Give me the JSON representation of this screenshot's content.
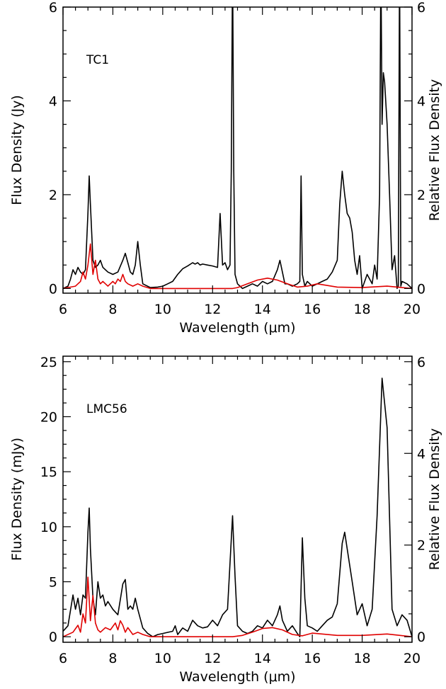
{
  "colors": {
    "observed": "#000000",
    "model": "#e00000"
  },
  "chart_data": [
    {
      "type": "line",
      "annotation": "TC1",
      "xlabel": "Wavelength (μm)",
      "ylabel": "Flux Density (Jy)",
      "y2label": "Relative Flux Density",
      "xlim": [
        6,
        20
      ],
      "ylim": [
        -0.1,
        6
      ],
      "y2lim": [
        -0.1,
        6
      ],
      "xticks": [
        6,
        8,
        10,
        12,
        14,
        16,
        18,
        20
      ],
      "yticks": [
        0,
        2,
        4,
        6
      ],
      "y2ticks": [
        0,
        2,
        4,
        6
      ],
      "series": [
        {
          "axis": "left",
          "color": "#000000",
          "x": [
            6.0,
            6.2,
            6.3,
            6.4,
            6.5,
            6.6,
            6.7,
            6.8,
            6.9,
            7.0,
            7.05,
            7.1,
            7.2,
            7.3,
            7.4,
            7.5,
            7.6,
            7.8,
            8.0,
            8.2,
            8.4,
            8.5,
            8.6,
            8.7,
            8.8,
            8.9,
            9.0,
            9.1,
            9.2,
            9.5,
            9.8,
            10.0,
            10.2,
            10.4,
            10.6,
            10.8,
            11.0,
            11.2,
            11.3,
            11.4,
            11.5,
            11.6,
            11.8,
            12.0,
            12.2,
            12.3,
            12.4,
            12.5,
            12.6,
            12.7,
            12.75,
            12.8,
            12.85,
            12.9,
            13.0,
            13.2,
            13.4,
            13.6,
            13.8,
            14.0,
            14.2,
            14.4,
            14.6,
            14.7,
            14.8,
            14.9,
            15.0,
            15.2,
            15.4,
            15.5,
            15.55,
            15.6,
            15.7,
            15.8,
            16.0,
            16.2,
            16.4,
            16.6,
            16.8,
            17.0,
            17.1,
            17.2,
            17.3,
            17.4,
            17.5,
            17.6,
            17.7,
            17.8,
            17.9,
            18.0,
            18.2,
            18.4,
            18.5,
            18.6,
            18.7,
            18.75,
            18.8,
            18.85,
            18.9,
            19.0,
            19.1,
            19.2,
            19.3,
            19.4,
            19.45,
            19.5,
            19.55,
            19.6,
            19.8,
            20.0
          ],
          "y": [
            0.0,
            0.05,
            0.2,
            0.4,
            0.3,
            0.45,
            0.35,
            0.3,
            0.4,
            1.6,
            2.4,
            1.8,
            0.6,
            0.45,
            0.5,
            0.6,
            0.45,
            0.35,
            0.3,
            0.35,
            0.6,
            0.75,
            0.55,
            0.35,
            0.3,
            0.5,
            1.0,
            0.5,
            0.1,
            0.02,
            0.03,
            0.05,
            0.1,
            0.15,
            0.3,
            0.42,
            0.48,
            0.55,
            0.52,
            0.55,
            0.5,
            0.52,
            0.5,
            0.48,
            0.45,
            1.6,
            0.5,
            0.55,
            0.4,
            0.5,
            2.5,
            7.0,
            2.5,
            0.3,
            0.1,
            0.0,
            0.05,
            0.1,
            0.05,
            0.15,
            0.1,
            0.15,
            0.4,
            0.6,
            0.35,
            0.1,
            0.1,
            0.05,
            0.1,
            0.15,
            2.4,
            0.3,
            0.05,
            0.15,
            0.05,
            0.1,
            0.15,
            0.2,
            0.35,
            0.6,
            1.8,
            2.5,
            2.0,
            1.6,
            1.5,
            1.2,
            0.6,
            0.3,
            0.7,
            0.0,
            0.3,
            0.1,
            0.5,
            0.2,
            2.0,
            7.0,
            3.5,
            4.6,
            4.4,
            3.5,
            2.0,
            0.4,
            0.7,
            0.0,
            0.05,
            7.0,
            0.05,
            0.15,
            0.1,
            0.0
          ]
        },
        {
          "axis": "right",
          "color": "#e00000",
          "x": [
            6.0,
            6.5,
            6.7,
            6.8,
            6.9,
            7.0,
            7.1,
            7.2,
            7.3,
            7.4,
            7.5,
            7.6,
            7.8,
            8.0,
            8.1,
            8.2,
            8.3,
            8.4,
            8.5,
            8.6,
            8.8,
            9.0,
            9.2,
            9.5,
            10.0,
            11.0,
            12.0,
            12.8,
            13.0,
            13.4,
            13.8,
            14.2,
            14.6,
            15.0,
            15.4,
            15.8,
            16.2,
            17.0,
            18.0,
            19.0,
            20.0
          ],
          "y": [
            0.0,
            0.05,
            0.15,
            0.35,
            0.2,
            0.5,
            0.95,
            0.3,
            0.6,
            0.2,
            0.1,
            0.15,
            0.05,
            0.15,
            0.1,
            0.2,
            0.15,
            0.3,
            0.15,
            0.1,
            0.05,
            0.1,
            0.05,
            0.0,
            0.0,
            0.0,
            0.0,
            0.0,
            0.02,
            0.1,
            0.18,
            0.22,
            0.18,
            0.1,
            0.03,
            0.05,
            0.1,
            0.03,
            0.02,
            0.05,
            0.0
          ]
        }
      ]
    },
    {
      "type": "line",
      "annotation": "LMC56",
      "xlabel": "Wavelength (μm)",
      "ylabel": "Flux Density (mJy)",
      "y2label": "Relative Flux Density",
      "xlim": [
        6,
        20
      ],
      "ylim": [
        -0.5,
        25.5
      ],
      "y2lim": [
        -0.12,
        6.12
      ],
      "xticks": [
        6,
        8,
        10,
        12,
        14,
        16,
        18,
        20
      ],
      "yticks": [
        0,
        5,
        10,
        15,
        20,
        25
      ],
      "y2ticks": [
        0,
        2,
        4,
        6
      ],
      "series": [
        {
          "axis": "left",
          "color": "#000000",
          "x": [
            6.0,
            6.2,
            6.4,
            6.5,
            6.6,
            6.7,
            6.8,
            6.9,
            7.0,
            7.05,
            7.1,
            7.2,
            7.3,
            7.4,
            7.5,
            7.6,
            7.7,
            7.8,
            8.0,
            8.2,
            8.4,
            8.5,
            8.6,
            8.7,
            8.8,
            8.9,
            9.0,
            9.2,
            9.4,
            9.6,
            9.8,
            10.0,
            10.2,
            10.4,
            10.5,
            10.6,
            10.8,
            11.0,
            11.2,
            11.4,
            11.6,
            11.8,
            12.0,
            12.2,
            12.4,
            12.6,
            12.8,
            12.9,
            13.0,
            13.2,
            13.4,
            13.6,
            13.8,
            14.0,
            14.2,
            14.4,
            14.6,
            14.7,
            14.8,
            15.0,
            15.2,
            15.4,
            15.5,
            15.6,
            15.7,
            15.8,
            16.0,
            16.2,
            16.4,
            16.6,
            16.8,
            17.0,
            17.2,
            17.3,
            17.4,
            17.6,
            17.8,
            18.0,
            18.2,
            18.4,
            18.6,
            18.8,
            19.0,
            19.2,
            19.4,
            19.6,
            19.8,
            20.0
          ],
          "y": [
            0.5,
            1.0,
            3.8,
            2.5,
            3.5,
            2.0,
            3.8,
            3.5,
            9.5,
            11.7,
            8.0,
            3.5,
            2.0,
            5.0,
            3.5,
            3.8,
            2.8,
            3.2,
            2.5,
            2.0,
            4.8,
            5.2,
            2.5,
            2.8,
            2.5,
            3.5,
            2.5,
            0.8,
            0.3,
            0.0,
            0.2,
            0.3,
            0.4,
            0.5,
            1.0,
            0.2,
            0.8,
            0.5,
            1.5,
            1.0,
            0.8,
            0.9,
            1.5,
            1.0,
            2.0,
            2.5,
            11.0,
            5.5,
            1.0,
            0.5,
            0.3,
            0.5,
            1.0,
            0.8,
            1.5,
            1.0,
            2.0,
            2.8,
            1.5,
            0.5,
            1.0,
            0.3,
            0.0,
            9.0,
            3.5,
            1.0,
            0.8,
            0.5,
            1.0,
            1.5,
            1.8,
            3.0,
            8.5,
            9.5,
            8.0,
            5.0,
            2.0,
            3.0,
            1.0,
            2.5,
            11.0,
            23.5,
            19.0,
            2.5,
            1.0,
            2.0,
            1.5,
            0.0
          ]
        },
        {
          "axis": "right",
          "color": "#e00000",
          "x": [
            6.0,
            6.4,
            6.6,
            6.7,
            6.8,
            6.9,
            7.0,
            7.1,
            7.2,
            7.3,
            7.4,
            7.5,
            7.7,
            7.9,
            8.1,
            8.2,
            8.3,
            8.4,
            8.5,
            8.6,
            8.8,
            9.0,
            9.2,
            9.5,
            10.0,
            11.0,
            12.0,
            12.8,
            13.2,
            13.6,
            14.0,
            14.4,
            14.8,
            15.2,
            15.6,
            16.0,
            17.0,
            18.0,
            19.0,
            20.0
          ],
          "y": [
            0.0,
            0.1,
            0.25,
            0.1,
            0.5,
            0.3,
            1.3,
            0.35,
            0.9,
            0.3,
            0.15,
            0.1,
            0.2,
            0.15,
            0.3,
            0.15,
            0.35,
            0.25,
            0.1,
            0.2,
            0.05,
            0.1,
            0.05,
            0.0,
            0.0,
            0.0,
            0.0,
            0.0,
            0.03,
            0.1,
            0.18,
            0.2,
            0.15,
            0.05,
            0.02,
            0.08,
            0.03,
            0.03,
            0.06,
            0.0
          ]
        }
      ]
    }
  ]
}
